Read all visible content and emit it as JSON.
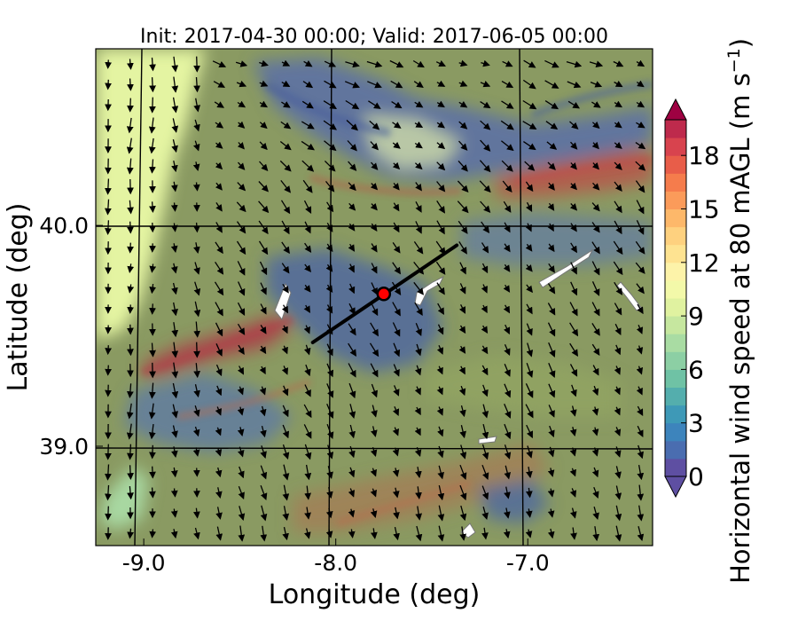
{
  "chart_data": {
    "type": "heatmap",
    "title": "Init: 2017-04-30 00:00; Valid: 2017-06-05 00:00",
    "xlabel": "Longitude (deg)",
    "ylabel": "Latitude (deg)",
    "xlim": [
      -9.25,
      -6.35
    ],
    "ylim": [
      38.55,
      40.8
    ],
    "x_ticks": [
      -9.0,
      -8.0,
      -7.0
    ],
    "x_tick_labels": [
      "-9.0",
      "-8.0",
      "-7.0"
    ],
    "y_ticks": [
      39.0,
      40.0
    ],
    "y_tick_labels": [
      "39.0",
      "40.0"
    ],
    "grid": true,
    "colorbar": {
      "label": "Horizontal wind speed at 80 mAGL (m s",
      "label_unit_exponent": "−1",
      "label_close": ")",
      "min": 0,
      "max": 20,
      "step": 1,
      "extend": "both",
      "ticks": [
        0,
        3,
        6,
        9,
        12,
        15,
        18
      ],
      "tick_labels": [
        "0",
        "3",
        "6",
        "9",
        "12",
        "15",
        "18"
      ],
      "colors": [
        "#5e4fa2",
        "#4a6db0",
        "#3d84bc",
        "#3e99b7",
        "#54aead",
        "#6fc2a5",
        "#8ccfa4",
        "#a9dca3",
        "#c6e79f",
        "#e0f2a0",
        "#f3f9a9",
        "#fdf3a9",
        "#fee391",
        "#fed17f",
        "#fdb86a",
        "#fb9b5a",
        "#f57c4c",
        "#e85d49",
        "#d8434e",
        "#be2a4c",
        "#9e0142"
      ]
    },
    "transect": {
      "from": {
        "lon": -8.12,
        "lat": 39.47
      },
      "to": {
        "lon": -7.37,
        "lat": 39.91
      }
    },
    "site_marker": {
      "lon": -7.75,
      "lat": 39.69,
      "color": "#ff0000"
    }
  }
}
